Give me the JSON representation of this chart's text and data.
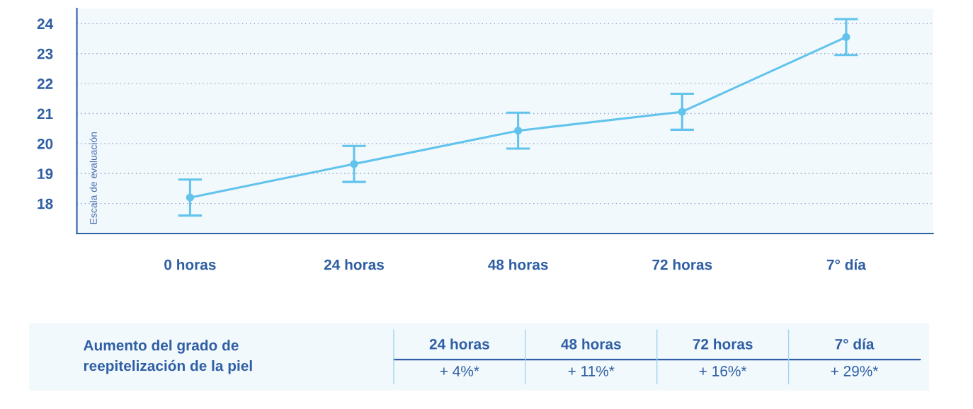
{
  "chart_data": [
    {
      "type": "line",
      "ylabel": "Escala de evaluación",
      "categories": [
        "0 horas",
        "24 horas",
        "48 horas",
        "72 horas",
        "7° día"
      ],
      "series": [
        {
          "color": "#62c3ec",
          "values": [
            18.2,
            19.32,
            20.43,
            21.06,
            23.55
          ],
          "errors": [
            0.6,
            0.6,
            0.6,
            0.6,
            0.6
          ]
        }
      ],
      "ylim": [
        17,
        24.5
      ],
      "yticks": [
        18,
        19,
        20,
        21,
        22,
        23,
        24
      ],
      "grid": "y",
      "marker": "circle",
      "line_style": "solid"
    },
    {
      "type": "other",
      "title": "Aumento del grado de reepitelización de la piel",
      "categories": [
        "24 horas",
        "48 horas",
        "72 horas",
        "7° día"
      ],
      "value_labels": [
        "+ 4%*",
        "+ 11%*",
        "+ 16%*",
        "+ 29%*"
      ]
    }
  ]
}
